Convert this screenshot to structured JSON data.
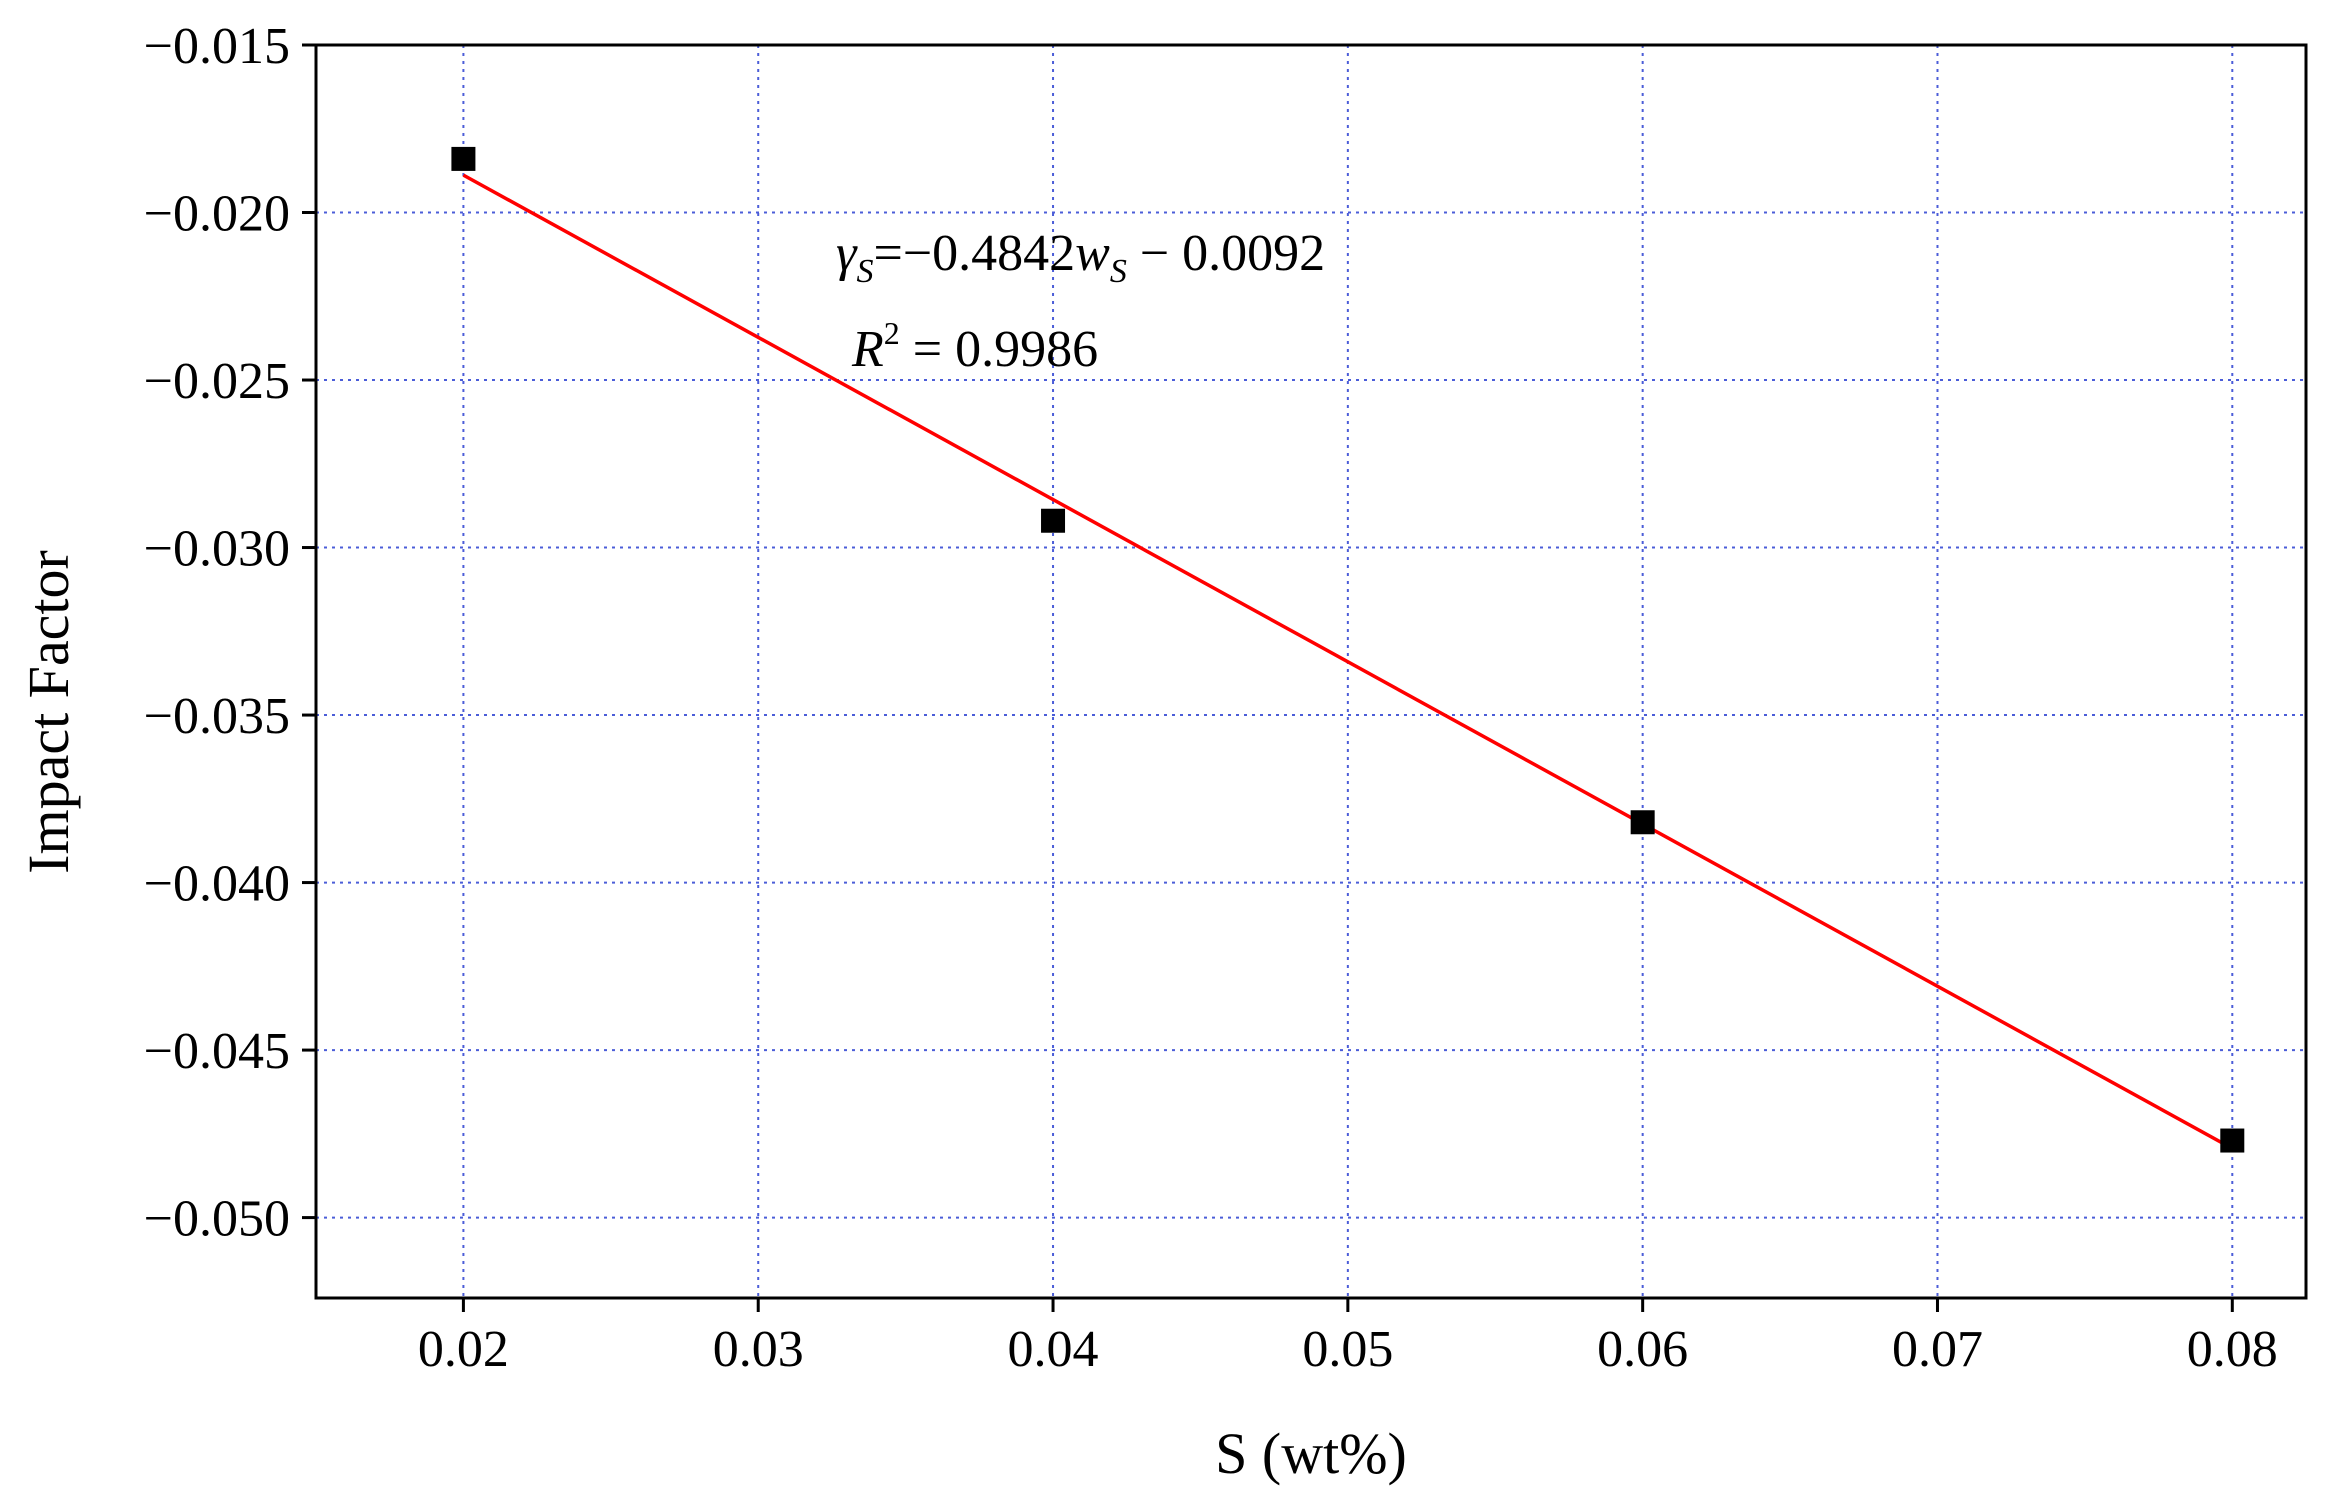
{
  "chart_data": {
    "type": "scatter",
    "title": "",
    "xlabel": "S (wt%)",
    "ylabel": "Impact Factor",
    "xlim": [
      0.015,
      0.0825
    ],
    "ylim": [
      -0.0524,
      -0.015
    ],
    "grid": true,
    "x_ticks": [
      0.02,
      0.03,
      0.04,
      0.05,
      0.06,
      0.07,
      0.08
    ],
    "x_tick_labels": [
      "0.02",
      "0.03",
      "0.04",
      "0.05",
      "0.06",
      "0.07",
      "0.08"
    ],
    "y_ticks": [
      -0.015,
      -0.02,
      -0.025,
      -0.03,
      -0.035,
      -0.04,
      -0.045,
      -0.05
    ],
    "y_tick_labels": [
      "−0.015",
      "−0.020",
      "−0.025",
      "−0.030",
      "−0.035",
      "−0.040",
      "−0.045",
      "−0.050"
    ],
    "series": [
      {
        "type": "scatter",
        "marker": "square",
        "color": "#000000",
        "x": [
          0.02,
          0.04,
          0.06,
          0.08
        ],
        "y": [
          -0.0184,
          -0.0292,
          -0.0382,
          -0.0477
        ]
      },
      {
        "type": "line",
        "color": "#ff0000",
        "x": [
          0.02,
          0.08
        ],
        "y": [
          -0.018884,
          -0.047936
        ]
      }
    ],
    "annotations": {
      "equation": {
        "gamma": "γ",
        "gamma_sub": "S",
        "eq_text": "=−0.4842",
        "w": "w",
        "w_sub": "S",
        "tail": " − 0.0092"
      },
      "r2": {
        "r": "R",
        "sup": "2",
        "tail": " = 0.9986"
      }
    }
  },
  "colors": {
    "grid": "#4b5dd8",
    "axis": "#000000",
    "fit_line": "#ff0000",
    "marker": "#000000"
  }
}
